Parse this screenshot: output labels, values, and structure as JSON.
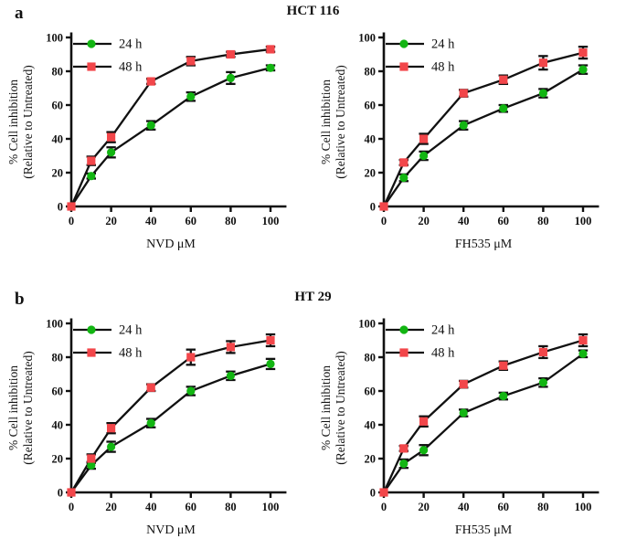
{
  "figure": {
    "panels": [
      {
        "letter": "a",
        "title": "HCT 116"
      },
      {
        "letter": "b",
        "title": "HT 29"
      }
    ]
  },
  "style": {
    "ink_color": "#111111",
    "color_24h": "#12b512",
    "color_48h": "#f2464a",
    "background": "#ffffff"
  },
  "chart_data": [
    {
      "type": "line",
      "panel": "a",
      "cell_line": "HCT 116",
      "xlabel": "NVD μM",
      "ylabel": [
        "% Cell inhibition",
        "(Relative to Untreated)"
      ],
      "x": [
        0,
        10,
        20,
        40,
        60,
        80,
        100
      ],
      "xticks": [
        0,
        20,
        40,
        60,
        80,
        100
      ],
      "yticks": [
        0,
        20,
        40,
        60,
        80,
        100
      ],
      "xlim": [
        0,
        108
      ],
      "ylim": [
        0,
        105
      ],
      "grid": false,
      "legend_position": "top-left",
      "series": [
        {
          "name": "24 h",
          "marker": "circle",
          "color": "#12b512",
          "values": [
            0,
            18,
            32,
            48,
            65,
            76,
            82
          ],
          "errors": [
            0,
            1.5,
            3,
            2.5,
            2.5,
            3.5,
            1.5
          ]
        },
        {
          "name": "48 h",
          "marker": "square",
          "color": "#f2464a",
          "values": [
            0,
            27,
            41,
            74,
            86,
            90,
            93
          ],
          "errors": [
            0,
            2.5,
            3,
            1.5,
            2.5,
            1.5,
            1.5
          ]
        }
      ]
    },
    {
      "type": "line",
      "panel": "a",
      "cell_line": "HCT 116",
      "xlabel": "FH535 μM",
      "ylabel": [
        "% Cell inhibition",
        "(Relative to Untreated)"
      ],
      "x": [
        0,
        10,
        20,
        40,
        60,
        80,
        100
      ],
      "xticks": [
        0,
        20,
        40,
        60,
        80,
        100
      ],
      "yticks": [
        0,
        20,
        40,
        60,
        80,
        100
      ],
      "xlim": [
        0,
        108
      ],
      "ylim": [
        0,
        105
      ],
      "grid": false,
      "legend_position": "top-left",
      "series": [
        {
          "name": "24 h",
          "marker": "circle",
          "color": "#12b512",
          "values": [
            0,
            17,
            30,
            48,
            58,
            67,
            81
          ],
          "errors": [
            0,
            2,
            2.5,
            2.5,
            2,
            2.5,
            2.5
          ]
        },
        {
          "name": "48 h",
          "marker": "square",
          "color": "#f2464a",
          "values": [
            0,
            26,
            40,
            67,
            75,
            85,
            91
          ],
          "errors": [
            0,
            1.5,
            3,
            2,
            2.5,
            4,
            3.5
          ]
        }
      ]
    },
    {
      "type": "line",
      "panel": "b",
      "cell_line": "HT 29",
      "xlabel": "NVD μM",
      "ylabel": [
        "% Cell inhibition",
        "(Relative to Untreated)"
      ],
      "x": [
        0,
        10,
        20,
        40,
        60,
        80,
        100
      ],
      "xticks": [
        0,
        20,
        40,
        60,
        80,
        100
      ],
      "yticks": [
        0,
        20,
        40,
        60,
        80,
        100
      ],
      "xlim": [
        0,
        108
      ],
      "ylim": [
        0,
        105
      ],
      "grid": false,
      "legend_position": "top-left",
      "series": [
        {
          "name": "24 h",
          "marker": "circle",
          "color": "#12b512",
          "values": [
            0,
            16,
            27,
            41,
            60,
            69,
            76
          ],
          "errors": [
            0,
            2,
            3,
            2.5,
            2.5,
            2.5,
            3
          ]
        },
        {
          "name": "48 h",
          "marker": "square",
          "color": "#f2464a",
          "values": [
            0,
            20,
            38,
            62,
            80,
            86,
            90
          ],
          "errors": [
            0,
            2.5,
            3,
            2,
            4.5,
            3.5,
            3.5
          ]
        }
      ]
    },
    {
      "type": "line",
      "panel": "b",
      "cell_line": "HT 29",
      "xlabel": "FH535 μM",
      "ylabel": [
        "% Cell inhibition",
        "(Relative to Untreated)"
      ],
      "x": [
        0,
        10,
        20,
        40,
        60,
        80,
        100
      ],
      "xticks": [
        0,
        20,
        40,
        60,
        80,
        100
      ],
      "yticks": [
        0,
        20,
        40,
        60,
        80,
        100
      ],
      "xlim": [
        0,
        108
      ],
      "ylim": [
        0,
        105
      ],
      "grid": false,
      "legend_position": "top-left",
      "series": [
        {
          "name": "24 h",
          "marker": "circle",
          "color": "#12b512",
          "values": [
            0,
            17,
            25,
            47,
            57,
            65,
            82
          ],
          "errors": [
            0,
            2.5,
            3,
            2,
            2,
            2.5,
            2
          ]
        },
        {
          "name": "48 h",
          "marker": "square",
          "color": "#f2464a",
          "values": [
            0,
            26,
            42,
            64,
            75,
            83,
            90
          ],
          "errors": [
            0,
            1.5,
            3,
            2,
            2.5,
            3.5,
            3.5
          ]
        }
      ]
    }
  ]
}
